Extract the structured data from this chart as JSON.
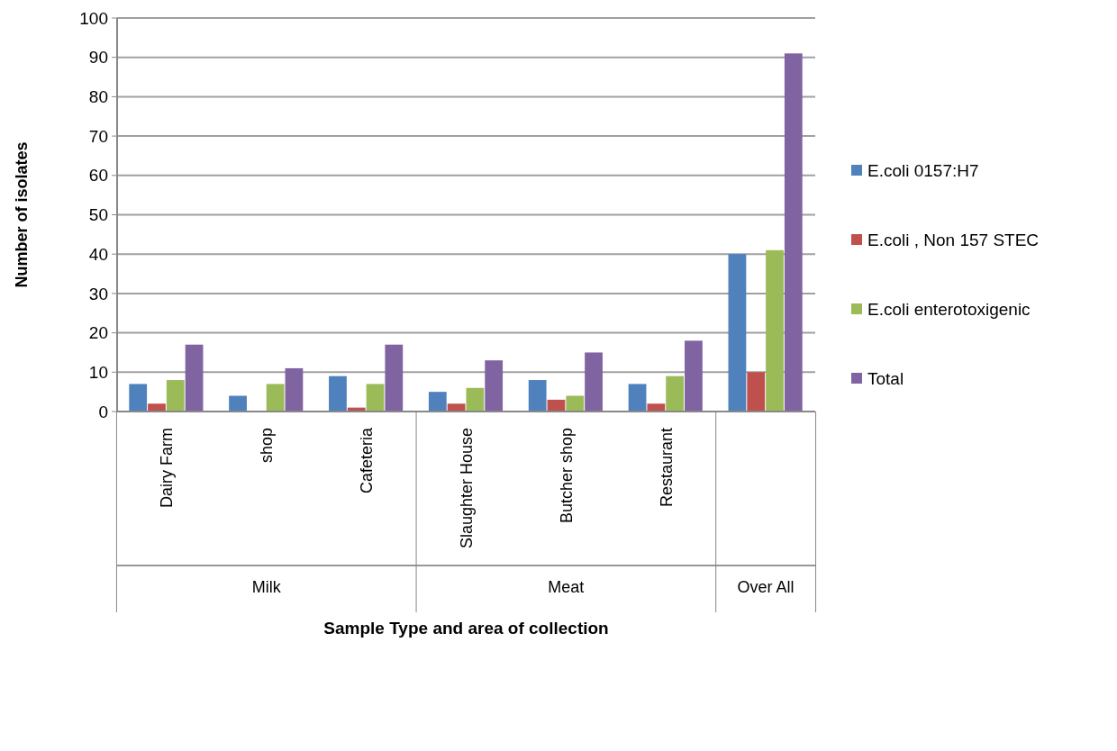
{
  "chart_data": {
    "type": "bar",
    "xlabel": "Sample Type and area of collection",
    "ylabel": "Number of isolates",
    "categories": [
      "Dairy Farm",
      "shop",
      "Cafeteria",
      "Slaughter House",
      "Butcher shop",
      "Restaurant",
      null
    ],
    "series": [
      {
        "name": "E.coli 0157:H7",
        "color": "#4f81bd",
        "values": [
          7,
          4,
          9,
          5,
          8,
          7,
          40
        ]
      },
      {
        "name": "E.coli , Non 157 STEC",
        "color": "#c0504d",
        "values": [
          2,
          0,
          1,
          2,
          3,
          2,
          10
        ]
      },
      {
        "name": "E.coli enterotoxigenic",
        "color": "#9bbb59",
        "values": [
          8,
          7,
          7,
          6,
          4,
          9,
          41
        ]
      },
      {
        "name": "Total",
        "color": "#8064a2",
        "values": [
          17,
          11,
          17,
          13,
          15,
          18,
          91
        ]
      }
    ],
    "ylim": [
      0,
      100
    ],
    "yticks": [
      0,
      10,
      20,
      30,
      40,
      50,
      60,
      70,
      80,
      90,
      100
    ],
    "grid": "y",
    "legend": "right",
    "annotations": [
      "Milk",
      "Meat",
      "Over All"
    ]
  }
}
